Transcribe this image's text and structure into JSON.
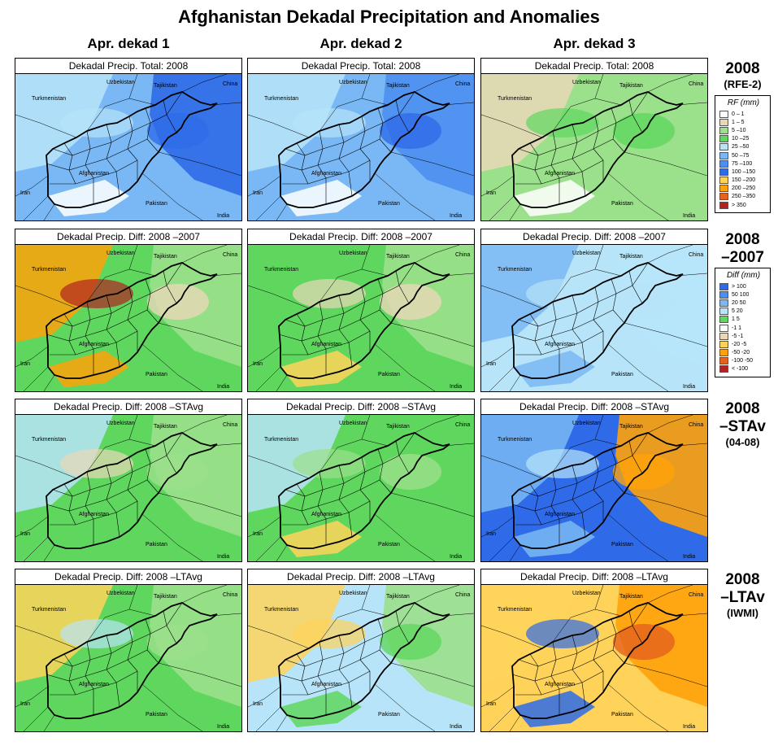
{
  "title": "Afghanistan Dekadal Precipitation and Anomalies",
  "columns": [
    "Apr. dekad 1",
    "Apr. dekad 2",
    "Apr. dekad 3"
  ],
  "rows": [
    {
      "label_main": "2008",
      "label_sub": "(RFE-2)",
      "titles": [
        "Dekadal Precip. Total: 2008",
        "Dekadal Precip. Total: 2008",
        "Dekadal Precip. Total: 2008"
      ],
      "fills": [
        {
          "base": 5,
          "west": 4,
          "east": 7,
          "accent": 4,
          "hot": 7,
          "south": 0
        },
        {
          "base": 5,
          "west": 4,
          "east": 6,
          "accent": 4,
          "hot": 7,
          "south": 0
        },
        {
          "base": 2,
          "west": 1,
          "east": 2,
          "accent": 3,
          "hot": 3,
          "south": 0
        }
      ]
    },
    {
      "label_main": "2008",
      "label_sub": "–2007",
      "titles": [
        "Dekadal Precip. Diff:  2008 –2007",
        "Dekadal Precip. Diff:  2008 –2007",
        "Dekadal Precip. Diff:  2008 –2007"
      ],
      "fills": [
        {
          "base": 3,
          "west": 9,
          "east": 2,
          "accent": 11,
          "hot": 1,
          "south": 9
        },
        {
          "base": 3,
          "west": 3,
          "east": 2,
          "accent": 1,
          "hot": 1,
          "south": 8
        },
        {
          "base": 4,
          "west": 5,
          "east": 4,
          "accent": 4,
          "hot": 4,
          "south": 5
        }
      ]
    },
    {
      "label_main": "2008",
      "label_sub": "–STAv",
      "label_note": "(04-08)",
      "titles": [
        "Dekadal Precip. Diff:  2008 –STAvg",
        "Dekadal Precip. Diff:  2008 –STAvg",
        "Dekadal Precip. Diff:  2008 –STAvg"
      ],
      "fills": [
        {
          "base": 3,
          "west": 4,
          "east": 2,
          "accent": 1,
          "hot": 2,
          "south": 3
        },
        {
          "base": 3,
          "west": 4,
          "east": 3,
          "accent": 2,
          "hot": 2,
          "south": 8
        },
        {
          "base": 7,
          "west": 5,
          "east": 9,
          "accent": 4,
          "hot": 9,
          "south": 5
        }
      ]
    },
    {
      "label_main": "2008",
      "label_sub": "–LTAv",
      "label_note": "(IWMI)",
      "titles": [
        "Dekadal Precip. Diff:  2008 –LTAvg",
        "Dekadal Precip. Diff:  2008 –LTAvg",
        "Dekadal Precip. Diff:  2008 –LTAvg"
      ],
      "fills": [
        {
          "base": 3,
          "west": 8,
          "east": 2,
          "accent": 4,
          "hot": 2,
          "south": 3
        },
        {
          "base": 4,
          "west": 8,
          "east": 2,
          "accent": 8,
          "hot": 3,
          "south": 3
        },
        {
          "base": 8,
          "west": 8,
          "east": 9,
          "accent": 7,
          "hot": 10,
          "south": 7
        }
      ]
    }
  ],
  "place_labels": {
    "uzbekistan": "Uzbekistan",
    "tajikistan": "Tajikistan",
    "china": "China",
    "turkmenistan": "Turkmenistan",
    "afghanistan": "Afghanistan",
    "iran": "Iran",
    "pakistan": "Pakistan",
    "india": "India"
  },
  "legend_rf": {
    "title": "RF (mm)",
    "items": [
      {
        "label": "0 – 1",
        "color": "#ffffff"
      },
      {
        "label": "1 – 5",
        "color": "#e9d8b8"
      },
      {
        "label": "5 –10",
        "color": "#9be08b"
      },
      {
        "label": "10 –25",
        "color": "#5fd75f"
      },
      {
        "label": "25 –50",
        "color": "#b7e4f8"
      },
      {
        "label": "50 –75",
        "color": "#7ab8f5"
      },
      {
        "label": "75 –100",
        "color": "#4d8ff0"
      },
      {
        "label": "100 –150",
        "color": "#2f6be8"
      },
      {
        "label": "150 –200",
        "color": "#ffd35a"
      },
      {
        "label": "200 –250",
        "color": "#ffa20a"
      },
      {
        "label": "250 –350",
        "color": "#e4621e"
      },
      {
        "label": "> 350",
        "color": "#b22222"
      }
    ]
  },
  "legend_diff": {
    "title": "Diff (mm)",
    "items": [
      {
        "label": "> 100",
        "color": "#2f6be8"
      },
      {
        "label": "50  100",
        "color": "#4d8ff0"
      },
      {
        "label": "20  50",
        "color": "#7ab8f5"
      },
      {
        "label": "5  20",
        "color": "#b7e4f8"
      },
      {
        "label": "1  5",
        "color": "#5fd75f"
      },
      {
        "label": "-1  1",
        "color": "#ffffff"
      },
      {
        "label": "-5  -1",
        "color": "#e9d8b8"
      },
      {
        "label": "-20  -5",
        "color": "#ffd35a"
      },
      {
        "label": "-50  -20",
        "color": "#ffa20a"
      },
      {
        "label": "-100  -50",
        "color": "#e4621e"
      },
      {
        "label": "< -100",
        "color": "#b22222"
      }
    ]
  }
}
